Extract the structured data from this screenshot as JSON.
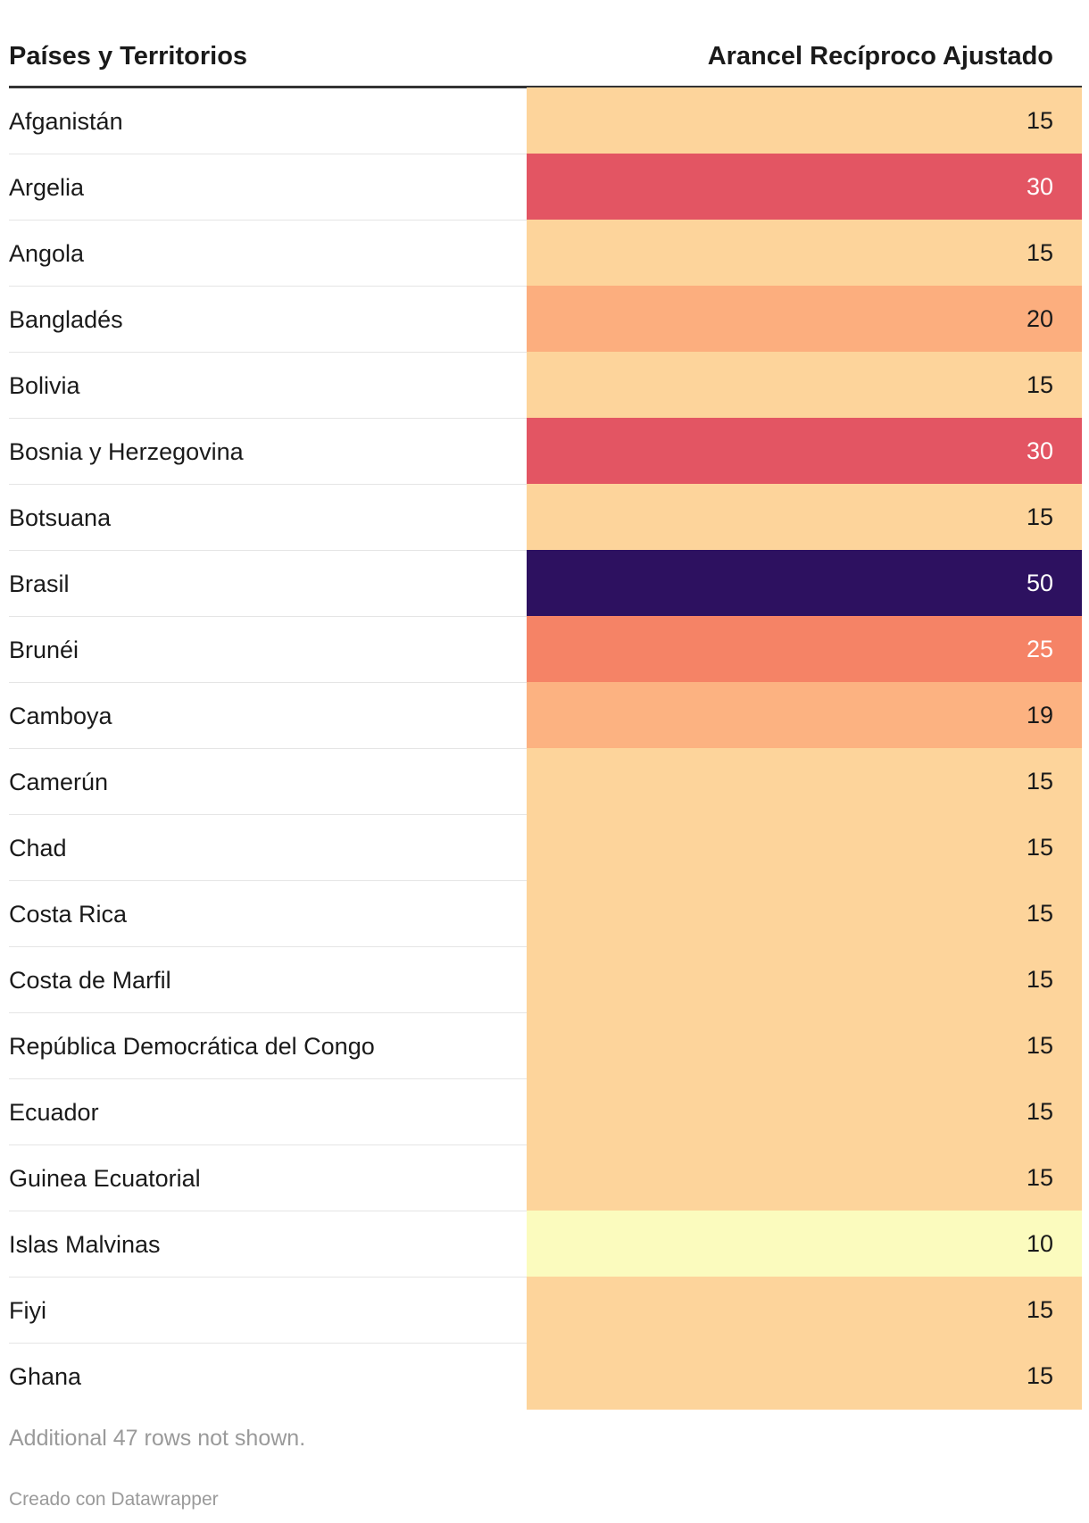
{
  "chart_data": {
    "type": "table",
    "columns": [
      "Países y Territorios",
      "Arancel Recíproco Ajustado"
    ],
    "rows": [
      {
        "country": "Afganistán",
        "value": "15"
      },
      {
        "country": "Argelia",
        "value": "30"
      },
      {
        "country": "Angola",
        "value": "15"
      },
      {
        "country": "Bangladés",
        "value": "20"
      },
      {
        "country": "Bolivia",
        "value": "15"
      },
      {
        "country": "Bosnia y Herzegovina",
        "value": "30"
      },
      {
        "country": "Botsuana",
        "value": "15"
      },
      {
        "country": "Brasil",
        "value": "50"
      },
      {
        "country": "Brunéi",
        "value": "25"
      },
      {
        "country": "Camboya",
        "value": "19"
      },
      {
        "country": "Camerún",
        "value": "15"
      },
      {
        "country": "Chad",
        "value": "15"
      },
      {
        "country": "Costa Rica",
        "value": "15"
      },
      {
        "country": "Costa de Marfil",
        "value": "15"
      },
      {
        "country": "República Democrática del Congo",
        "value": "15"
      },
      {
        "country": "Ecuador",
        "value": "15"
      },
      {
        "country": "Guinea Ecuatorial",
        "value": "15"
      },
      {
        "country": "Islas Malvinas",
        "value": "10"
      },
      {
        "country": "Fiyi",
        "value": "15"
      },
      {
        "country": "Ghana",
        "value": "15"
      }
    ],
    "color_scale": {
      "10": "#fbfbbe",
      "15": "#fdd49b",
      "19": "#fcb281",
      "20": "#fcae7e",
      "25": "#f58366",
      "30": "#e35563",
      "50": "#2d1160"
    },
    "light_text_values": [
      "25",
      "30",
      "50"
    ]
  },
  "footer": {
    "note": "Additional 47 rows not shown.",
    "credit": "Creado con Datawrapper"
  }
}
